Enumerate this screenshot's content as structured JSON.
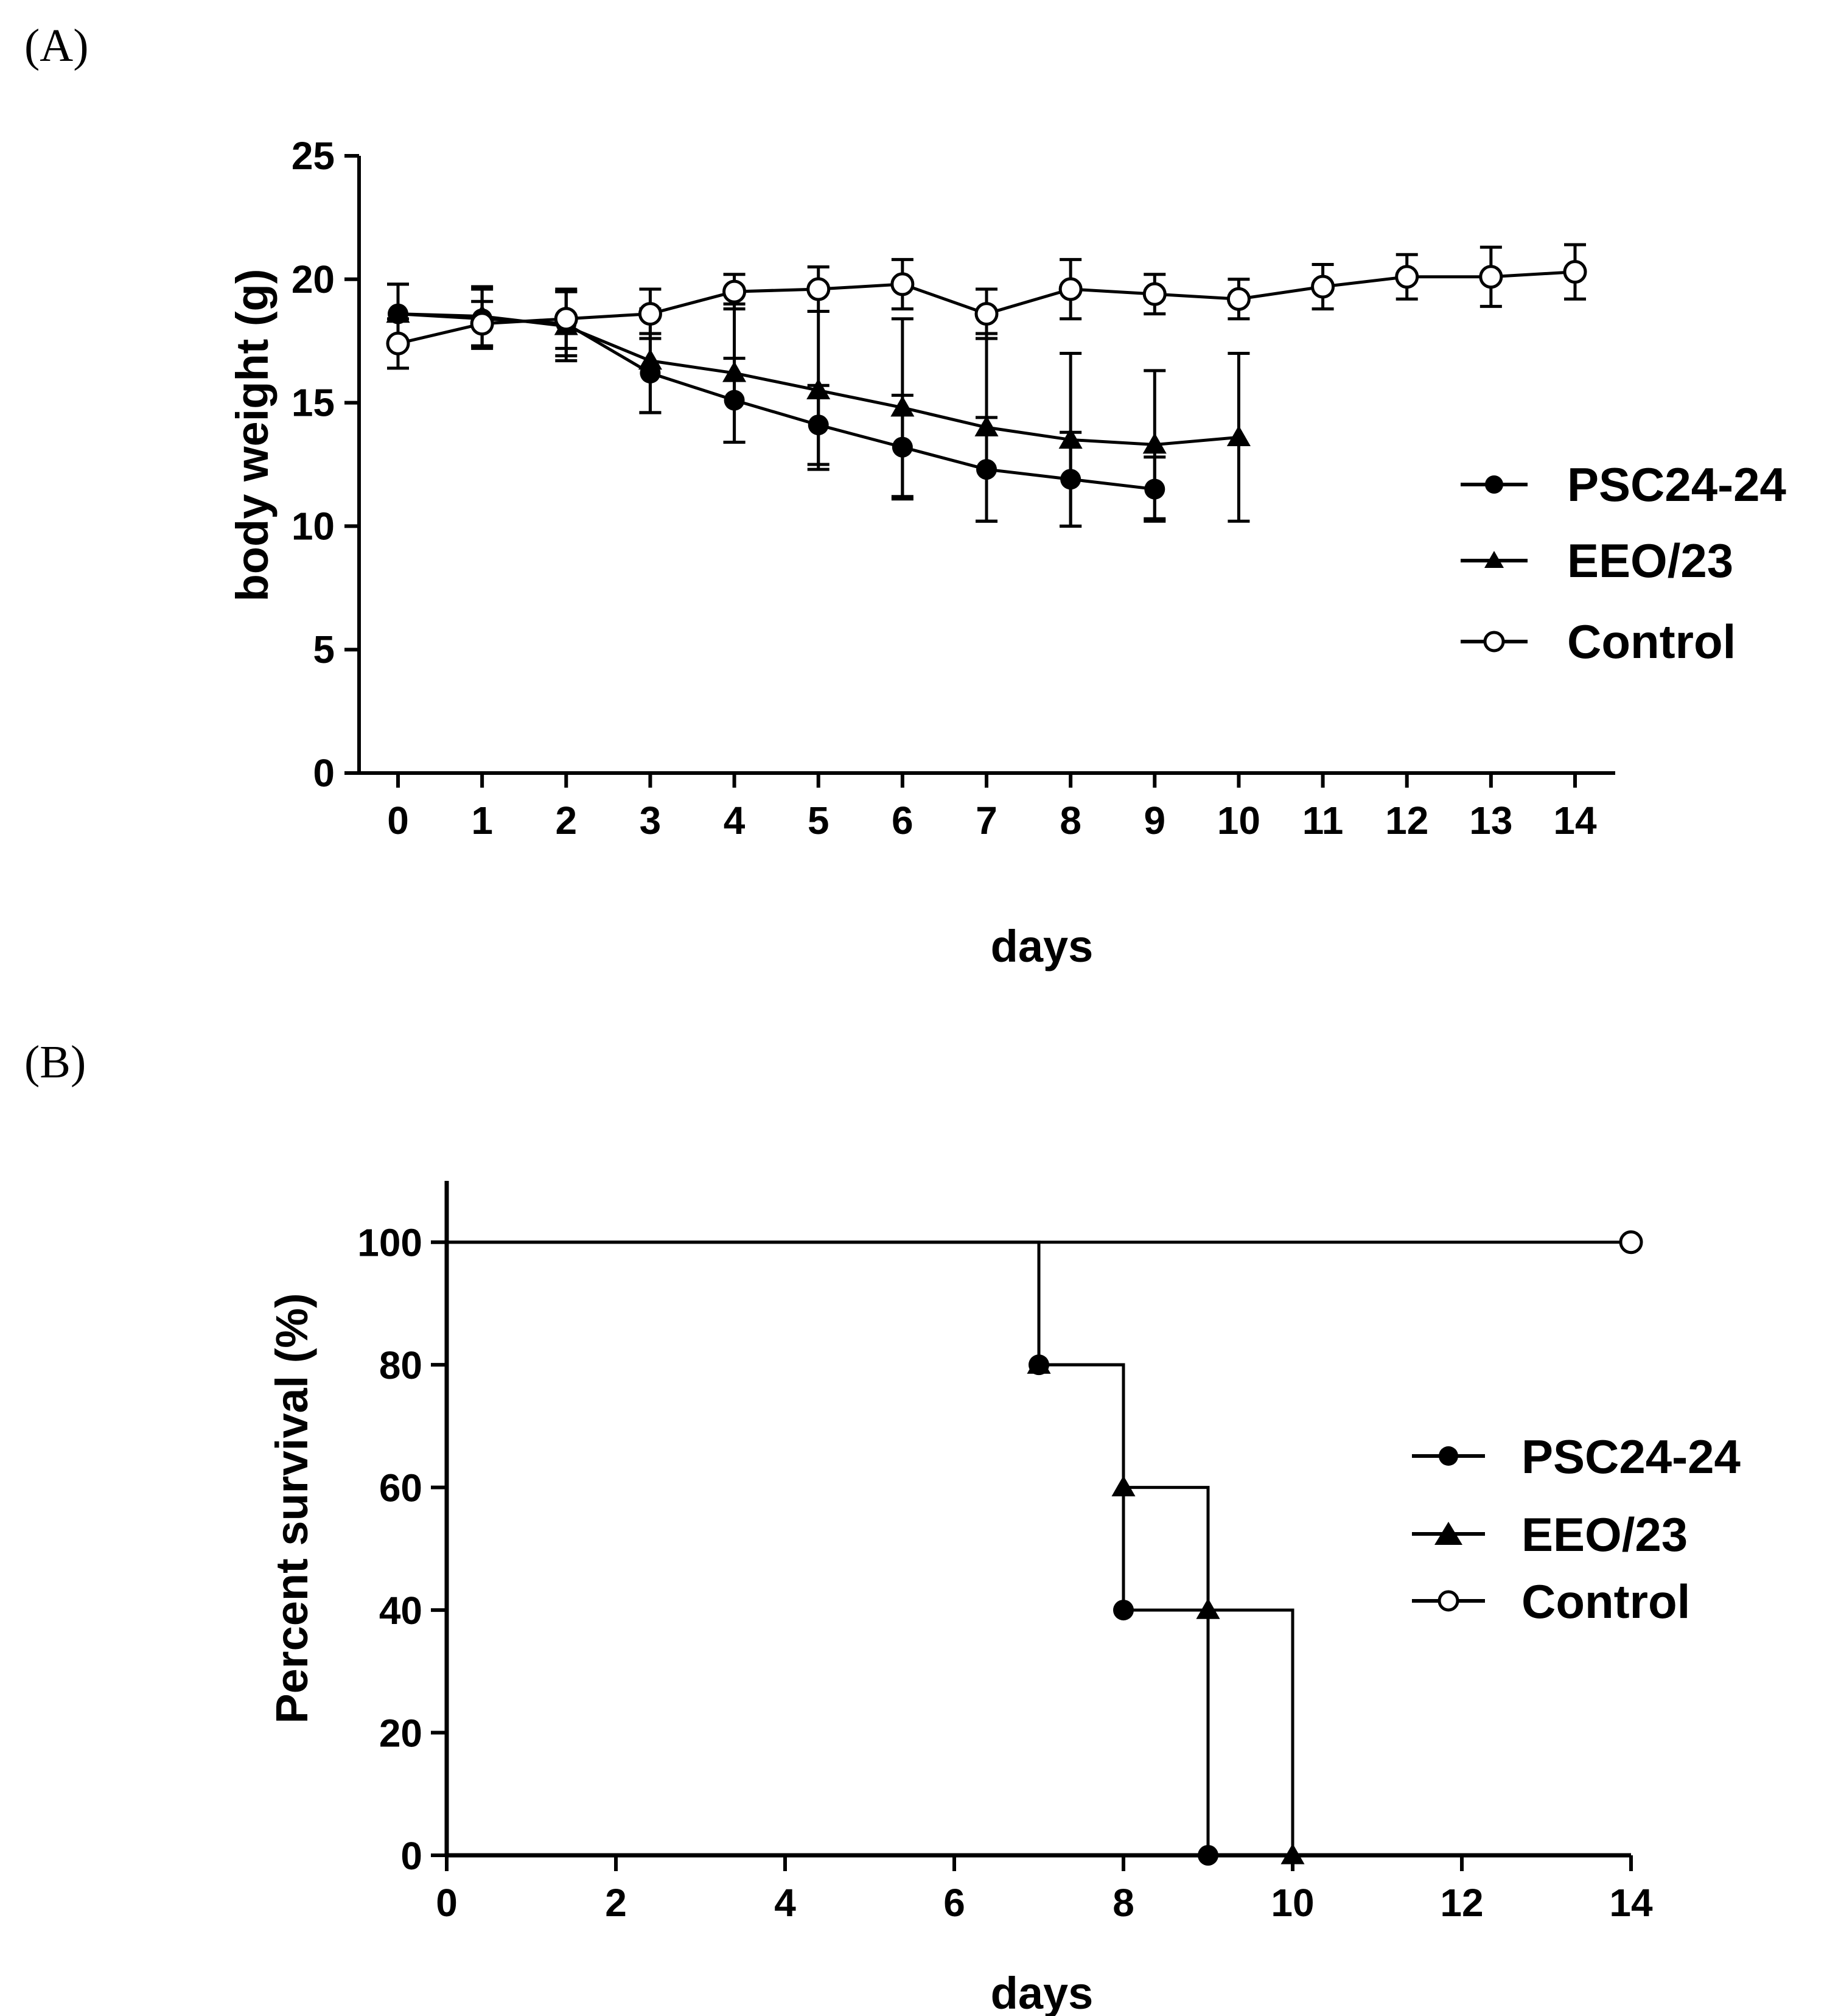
{
  "chart_data": [
    {
      "panel": "(A)",
      "type": "line",
      "title": "",
      "xlabel": "days",
      "ylabel": "body weight (g)",
      "xlim": [
        -0.4,
        14.5
      ],
      "ylim": [
        0,
        25
      ],
      "xticks": [
        0,
        1,
        2,
        3,
        4,
        5,
        6,
        7,
        8,
        9,
        10,
        11,
        12,
        13,
        14
      ],
      "yticks": [
        0,
        5,
        10,
        15,
        20,
        25
      ],
      "grid": false,
      "legend_position": "right",
      "series": [
        {
          "name": "PSC24-24",
          "marker": "filled-circle",
          "x": [
            0,
            1,
            2,
            3,
            4,
            5,
            6,
            7,
            8,
            9
          ],
          "y": [
            18.6,
            18.4,
            18.2,
            16.2,
            15.1,
            14.1,
            13.2,
            12.3,
            11.9,
            11.5
          ],
          "err": [
            1.2,
            1.2,
            1.3,
            1.6,
            1.7,
            1.6,
            2.1,
            2.1,
            1.9,
            1.3
          ]
        },
        {
          "name": "EEO/23",
          "marker": "filled-triangle",
          "x": [
            0,
            1,
            2,
            3,
            4,
            5,
            6,
            7,
            8,
            9,
            10
          ],
          "y": [
            18.6,
            18.5,
            18.1,
            16.7,
            16.2,
            15.5,
            14.8,
            14.0,
            13.5,
            13.3,
            13.6
          ],
          "err": [
            1.2,
            1.2,
            1.4,
            2.1,
            2.8,
            3.2,
            3.6,
            3.8,
            3.5,
            3.0,
            3.4
          ]
        },
        {
          "name": "Control",
          "marker": "open-circle",
          "x": [
            0,
            1,
            2,
            3,
            4,
            5,
            6,
            7,
            8,
            9,
            10,
            11,
            12,
            13,
            14
          ],
          "y": [
            17.4,
            18.2,
            18.4,
            18.6,
            19.5,
            19.6,
            19.8,
            18.6,
            19.6,
            19.4,
            19.2,
            19.7,
            20.1,
            20.1,
            20.3
          ],
          "err": [
            1.0,
            0.9,
            1.2,
            1.0,
            0.7,
            0.9,
            1.0,
            1.0,
            1.2,
            0.8,
            0.8,
            0.9,
            0.9,
            1.2,
            1.1
          ]
        }
      ]
    },
    {
      "panel": "(B)",
      "type": "step-line",
      "title": "",
      "xlabel": "days",
      "ylabel": "Percent survival (%)",
      "xlim": [
        0,
        14
      ],
      "ylim": [
        0,
        110
      ],
      "xticks": [
        0,
        2,
        4,
        6,
        8,
        10,
        12,
        14
      ],
      "yticks": [
        0,
        20,
        40,
        60,
        80,
        100
      ],
      "grid": false,
      "legend_position": "right",
      "series": [
        {
          "name": "PSC24-24",
          "marker": "filled-circle",
          "steps": [
            [
              0,
              100
            ],
            [
              7,
              80
            ],
            [
              8,
              40
            ],
            [
              9,
              0
            ],
            [
              14,
              0
            ]
          ],
          "points": [
            [
              7,
              80
            ],
            [
              8,
              40
            ],
            [
              9,
              0
            ]
          ]
        },
        {
          "name": "EEO/23",
          "marker": "filled-triangle",
          "steps": [
            [
              0,
              100
            ],
            [
              7,
              80
            ],
            [
              8,
              60
            ],
            [
              9,
              40
            ],
            [
              10,
              0
            ],
            [
              14,
              0
            ]
          ],
          "points": [
            [
              7,
              80
            ],
            [
              8,
              60
            ],
            [
              9,
              40
            ],
            [
              10,
              0
            ]
          ]
        },
        {
          "name": "Control",
          "marker": "open-circle",
          "steps": [
            [
              0,
              100
            ],
            [
              14,
              100
            ]
          ],
          "points": [
            [
              14,
              100
            ]
          ]
        }
      ]
    }
  ]
}
